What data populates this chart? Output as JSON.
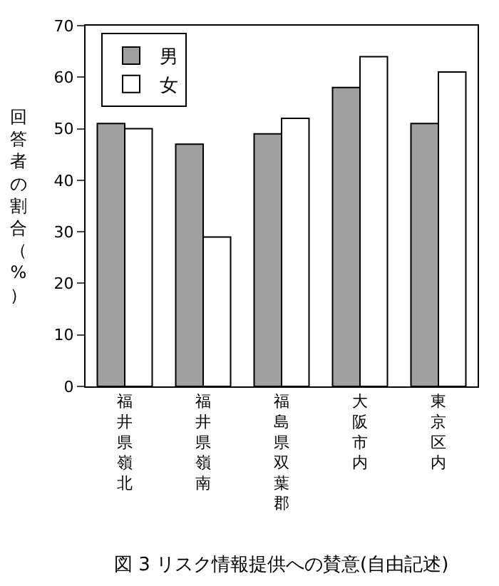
{
  "chart_data": {
    "type": "bar",
    "title": "図 3 リスク情報提供への賛意(自由記述)",
    "ylabel": "回答者の割合（%）",
    "categories": [
      "福井県嶺北",
      "福井県嶺南",
      "福島県双葉郡",
      "大阪市内",
      "東京区内"
    ],
    "series": [
      {
        "name": "男",
        "color": "#a0a0a0",
        "values": [
          51,
          47,
          49,
          58,
          51
        ]
      },
      {
        "name": "女",
        "color": "#ffffff",
        "values": [
          50,
          29,
          52,
          64,
          61
        ]
      }
    ],
    "ylim": [
      0,
      70
    ],
    "yticks": [
      0,
      10,
      20,
      30,
      40,
      50,
      60,
      70
    ],
    "grid": false,
    "legend": "top left"
  }
}
